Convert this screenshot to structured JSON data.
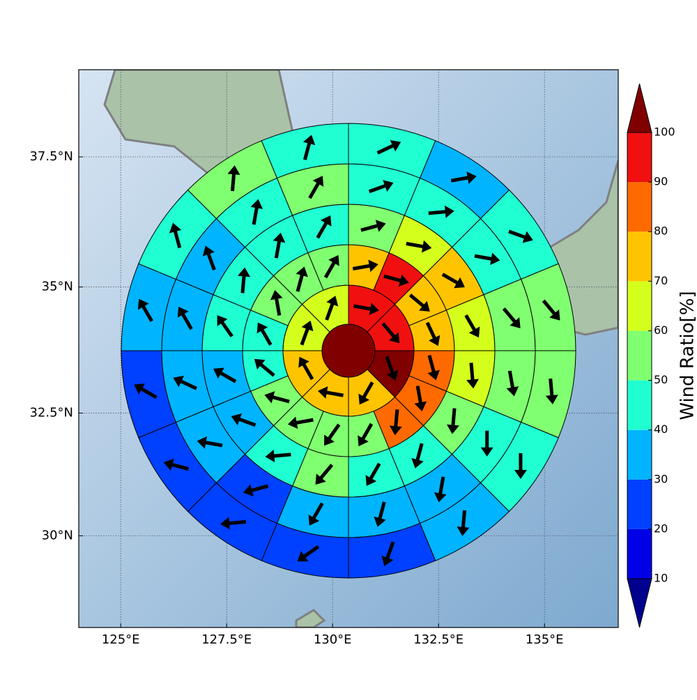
{
  "chart_data": {
    "type": "polar-sector-map",
    "projection": "mercator",
    "xlim": [
      124.01,
      136.74
    ],
    "ylim": [
      28.09,
      39.13
    ],
    "xticks": [
      {
        "value": 125,
        "label": "125°E"
      },
      {
        "value": 127.5,
        "label": "127.5°E"
      },
      {
        "value": 130,
        "label": "130°E"
      },
      {
        "value": 132.5,
        "label": "132.5°E"
      },
      {
        "value": 135,
        "label": "135°E"
      }
    ],
    "yticks": [
      {
        "value": 30,
        "label": "30°N"
      },
      {
        "value": 32.5,
        "label": "32.5°N"
      },
      {
        "value": 35,
        "label": "35°N"
      },
      {
        "value": 37.5,
        "label": "37.5°N"
      }
    ],
    "grid": true,
    "rings": [
      {
        "values": [
          105
        ]
      },
      {
        "values": [
          95,
          95,
          105,
          75,
          75,
          75,
          65,
          65
        ],
        "directions": [
          100,
          140,
          160,
          210,
          280,
          330,
          20,
          20
        ]
      },
      {
        "values": [
          75,
          95,
          75,
          75,
          85,
          85,
          85,
          55,
          55,
          55,
          55,
          45,
          45,
          55,
          55,
          55
        ],
        "directions": [
          80,
          105,
          130,
          155,
          165,
          170,
          185,
          210,
          215,
          260,
          285,
          310,
          330,
          350,
          15,
          30
        ]
      },
      {
        "values": [
          55,
          65,
          75,
          65,
          65,
          55,
          45,
          45,
          55,
          45,
          35,
          35,
          45,
          45,
          45,
          45
        ],
        "directions": [
          75,
          100,
          120,
          150,
          175,
          185,
          195,
          210,
          220,
          265,
          290,
          300,
          325,
          5,
          10,
          30
        ]
      },
      {
        "values": [
          45,
          45,
          45,
          55,
          55,
          45,
          35,
          35,
          35,
          25,
          35,
          35,
          35,
          35,
          45,
          55
        ],
        "directions": [
          70,
          85,
          100,
          140,
          170,
          180,
          190,
          195,
          210,
          255,
          280,
          295,
          330,
          340,
          10,
          30
        ]
      },
      {
        "values": [
          45,
          35,
          45,
          55,
          55,
          45,
          35,
          25,
          25,
          25,
          25,
          25,
          35,
          45,
          55,
          45
        ],
        "directions": [
          65,
          80,
          110,
          140,
          175,
          180,
          185,
          200,
          235,
          265,
          285,
          300,
          330,
          345,
          5,
          15
        ]
      }
    ],
    "colorbar": {
      "label": "Wind Ratio[%]",
      "ticks": [
        10,
        20,
        30,
        40,
        50,
        60,
        70,
        80,
        90,
        100
      ],
      "colors": [
        "#00008f",
        "#0000e6",
        "#0040ff",
        "#00b4ff",
        "#20ffd2",
        "#80ff70",
        "#d4ff1c",
        "#ffc400",
        "#ff6a00",
        "#f01010",
        "#800000"
      ]
    }
  }
}
